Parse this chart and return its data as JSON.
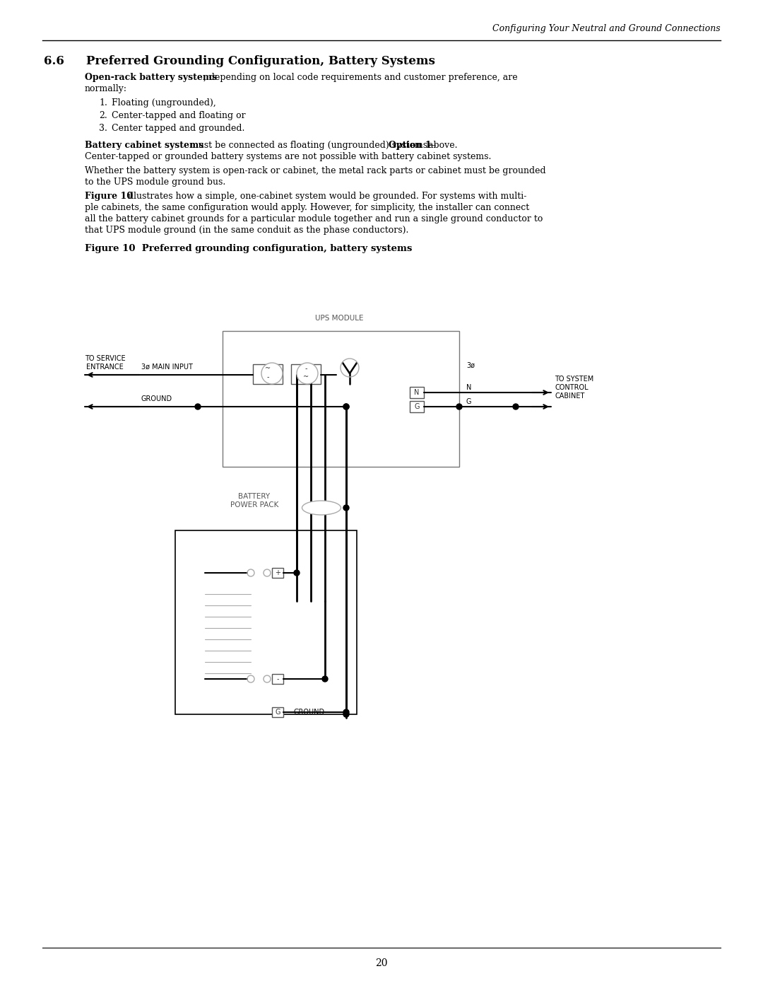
{
  "page_title": "Configuring Your Neutral and Ground Connections",
  "section": "6.6",
  "section_title": "Preferred Grounding Configuration, Battery Systems",
  "body_text": [
    {
      "bold_start": "Open-rack battery systems",
      "rest": ", depending on local code requirements and customer preference, are normally:"
    },
    {
      "list": [
        "Floating (ungrounded),",
        "Center-tapped and floating or",
        "Center tapped and grounded."
      ]
    },
    {
      "bold_start": "Battery cabinet systems",
      "rest": " must be connected as floating (ungrounded) systems—",
      "bold_mid": "Option 1",
      "rest2": " above. Center-tapped or grounded battery systems are not possible with battery cabinet systems."
    },
    {
      "plain": "Whether the battery system is open-rack or cabinet, the metal rack parts or cabinet must be grounded to the UPS module ground bus."
    },
    {
      "bold_start": "Figure 10",
      "rest": " illustrates how a simple, one-cabinet system would be grounded. For systems with multiple cabinets, the same configuration would apply. However, for simplicity, the installer can connect all the battery cabinet grounds for a particular module together and run a single ground conductor to that UPS module ground (in the same conduit as the phase conductors)."
    }
  ],
  "figure_caption": "Figure 10  Preferred grounding configuration, battery systems",
  "page_number": "20",
  "bg_color": "#ffffff",
  "text_color": "#000000",
  "line_color": "#000000",
  "light_line_color": "#aaaaaa"
}
